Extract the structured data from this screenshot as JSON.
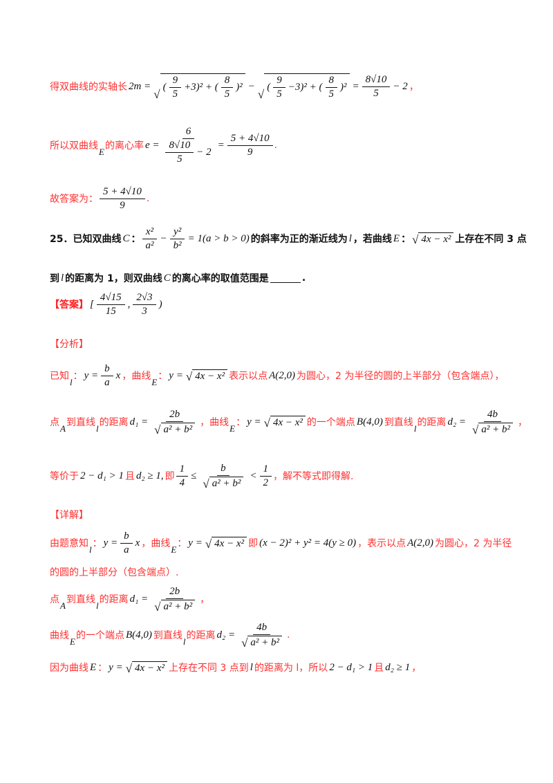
{
  "lines": [
    {
      "name": "real-axis-line",
      "segs": [
        {
          "k": "t",
          "v": "得双曲线的实轴长"
        },
        {
          "k": "m",
          "v": "2m ="
        },
        {
          "k": "sq",
          "c": [
            {
              "k": "m",
              "v": "("
            },
            {
              "k": "f",
              "n": [
                {
                  "k": "m",
                  "v": "9"
                }
              ],
              "d": [
                {
                  "k": "m",
                  "v": "5"
                }
              ]
            },
            {
              "k": "m",
              "v": "+3)² + ("
            },
            {
              "k": "f",
              "n": [
                {
                  "k": "m",
                  "v": "8"
                }
              ],
              "d": [
                {
                  "k": "m",
                  "v": "5"
                }
              ]
            },
            {
              "k": "m",
              "v": ")²"
            }
          ]
        },
        {
          "k": "m",
          "v": "−"
        },
        {
          "k": "sq",
          "c": [
            {
              "k": "m",
              "v": "("
            },
            {
              "k": "f",
              "n": [
                {
                  "k": "m",
                  "v": "9"
                }
              ],
              "d": [
                {
                  "k": "m",
                  "v": "5"
                }
              ]
            },
            {
              "k": "m",
              "v": "−3)² + ("
            },
            {
              "k": "f",
              "n": [
                {
                  "k": "m",
                  "v": "8"
                }
              ],
              "d": [
                {
                  "k": "m",
                  "v": "5"
                }
              ]
            },
            {
              "k": "m",
              "v": ")²"
            }
          ]
        },
        {
          "k": "m",
          "v": "="
        },
        {
          "k": "f",
          "n": [
            {
              "k": "m",
              "v": "8√10"
            }
          ],
          "d": [
            {
              "k": "m",
              "v": "5"
            }
          ]
        },
        {
          "k": "m",
          "v": "− 2"
        },
        {
          "k": "t",
          "v": "，"
        }
      ]
    },
    {
      "name": "eccentricity-line",
      "segs": [
        {
          "k": "t",
          "v": "所以双曲线"
        },
        {
          "k": "lo",
          "v": "E"
        },
        {
          "k": "t",
          "v": "的离心率"
        },
        {
          "k": "m",
          "v": "  e ="
        },
        {
          "k": "f",
          "n": [
            {
              "k": "m",
              "v": "6"
            }
          ],
          "d": [
            {
              "k": "f",
              "n": [
                {
                  "k": "m",
                  "v": "8√10"
                }
              ],
              "d": [
                {
                  "k": "m",
                  "v": "5"
                }
              ]
            },
            {
              "k": "m",
              "v": "− 2"
            }
          ]
        },
        {
          "k": "m",
          "v": "="
        },
        {
          "k": "f",
          "n": [
            {
              "k": "m",
              "v": "5 + 4√10"
            }
          ],
          "d": [
            {
              "k": "m",
              "v": "9"
            }
          ]
        },
        {
          "k": "t",
          "v": "  ."
        }
      ]
    },
    {
      "name": "answer-conclusion-line",
      "segs": [
        {
          "k": "t",
          "v": "故答案为："
        },
        {
          "k": "f",
          "n": [
            {
              "k": "m",
              "v": "5 + 4√10"
            }
          ],
          "d": [
            {
              "k": "m",
              "v": "9"
            }
          ]
        },
        {
          "k": "t",
          "v": "."
        }
      ]
    },
    {
      "name": "question-25-line-1",
      "segs": [
        {
          "k": "b",
          "v": "25．已知双曲线"
        },
        {
          "k": "m",
          "v": "C"
        },
        {
          "k": "b",
          "v": "："
        },
        {
          "k": "f",
          "n": [
            {
              "k": "m",
              "v": "x²"
            }
          ],
          "d": [
            {
              "k": "m",
              "v": "a²"
            }
          ]
        },
        {
          "k": "m",
          "v": "−"
        },
        {
          "k": "f",
          "n": [
            {
              "k": "m",
              "v": "y²"
            }
          ],
          "d": [
            {
              "k": "m",
              "v": "b²"
            }
          ]
        },
        {
          "k": "m",
          "v": "= 1(a > b > 0)"
        },
        {
          "k": "b",
          "v": "的斜率为正的渐近线为"
        },
        {
          "k": "m",
          "v": "l"
        },
        {
          "k": "b",
          "v": "，若曲线"
        },
        {
          "k": "m",
          "v": "E"
        },
        {
          "k": "b",
          "v": "："
        },
        {
          "k": "sq",
          "c": [
            {
              "k": "m",
              "v": "4x − x²"
            }
          ]
        },
        {
          "k": "b",
          "v": "上存在不同 3 点"
        }
      ]
    },
    {
      "name": "question-25-line-2",
      "segs": [
        {
          "k": "b",
          "v": "到"
        },
        {
          "k": "m",
          "v": "l"
        },
        {
          "k": "b",
          "v": "的距离为 1，则双曲线"
        },
        {
          "k": "m",
          "v": "C"
        },
        {
          "k": "b",
          "v": "的离心率的取值范围是"
        },
        {
          "k": "blank",
          "v": ""
        },
        {
          "k": "b",
          "v": "."
        }
      ]
    },
    {
      "name": "answer-line",
      "segs": [
        {
          "k": "tag",
          "v": "【答案】"
        },
        {
          "k": "m",
          "v": "["
        },
        {
          "k": "f",
          "n": [
            {
              "k": "m",
              "v": "4√15"
            }
          ],
          "d": [
            {
              "k": "m",
              "v": "15"
            }
          ]
        },
        {
          "k": "m",
          "v": ","
        },
        {
          "k": "f",
          "n": [
            {
              "k": "m",
              "v": "2√3"
            }
          ],
          "d": [
            {
              "k": "m",
              "v": "3"
            }
          ]
        },
        {
          "k": "m",
          "v": ")"
        }
      ]
    },
    {
      "name": "analysis-heading",
      "segs": [
        {
          "k": "tagn",
          "v": "【分析】"
        }
      ]
    },
    {
      "name": "analysis-line-1",
      "segs": [
        {
          "k": "t",
          "v": "已知"
        },
        {
          "k": "lo",
          "v": "l"
        },
        {
          "k": "t",
          "v": "："
        },
        {
          "k": "m",
          "v": "y ="
        },
        {
          "k": "f",
          "n": [
            {
              "k": "m",
              "v": "b"
            }
          ],
          "d": [
            {
              "k": "m",
              "v": "a"
            }
          ]
        },
        {
          "k": "m",
          "v": "x"
        },
        {
          "k": "t",
          "v": "，曲线"
        },
        {
          "k": "lo",
          "v": "E"
        },
        {
          "k": "t",
          "v": "："
        },
        {
          "k": "m",
          "v": "y ="
        },
        {
          "k": "sq",
          "c": [
            {
              "k": "m",
              "v": "4x − x²"
            }
          ]
        },
        {
          "k": "t",
          "v": "表示以点"
        },
        {
          "k": "m",
          "v": "A(2,0)"
        },
        {
          "k": "t",
          "v": "为圆心，2 为半径的圆的上半部分（包含端点），"
        }
      ]
    },
    {
      "name": "analysis-line-2",
      "segs": [
        {
          "k": "t",
          "v": "点"
        },
        {
          "k": "lo",
          "v": "A"
        },
        {
          "k": "t",
          "v": "到直线"
        },
        {
          "k": "lo",
          "v": "l"
        },
        {
          "k": "t",
          "v": "的距离"
        },
        {
          "k": "m",
          "v": "d₁ ="
        },
        {
          "k": "f",
          "n": [
            {
              "k": "m",
              "v": "2b"
            }
          ],
          "d": [
            {
              "k": "sq",
              "c": [
                {
                  "k": "m",
                  "v": "a² + b²"
                }
              ]
            }
          ]
        },
        {
          "k": "t",
          "v": "，曲线"
        },
        {
          "k": "lo",
          "v": "E"
        },
        {
          "k": "t",
          "v": "："
        },
        {
          "k": "m",
          "v": "y ="
        },
        {
          "k": "sq",
          "c": [
            {
              "k": "m",
              "v": "4x − x²"
            }
          ]
        },
        {
          "k": "t",
          "v": "的一个端点"
        },
        {
          "k": "m",
          "v": "B(4,0)"
        },
        {
          "k": "t",
          "v": "到直线"
        },
        {
          "k": "lo",
          "v": "l"
        },
        {
          "k": "t",
          "v": "的距离"
        },
        {
          "k": "m",
          "v": "d₂ ="
        },
        {
          "k": "f",
          "n": [
            {
              "k": "m",
              "v": "4b"
            }
          ],
          "d": [
            {
              "k": "sq",
              "c": [
                {
                  "k": "m",
                  "v": "a² + b²"
                }
              ]
            }
          ]
        },
        {
          "k": "t",
          "v": "，"
        }
      ]
    },
    {
      "name": "analysis-line-3",
      "segs": [
        {
          "k": "t",
          "v": "等价于"
        },
        {
          "k": "m",
          "v": "2 − d₁ > 1"
        },
        {
          "k": "t",
          "v": "且"
        },
        {
          "k": "m",
          "v": "d₂ ≥ 1,"
        },
        {
          "k": "t",
          "v": "即"
        },
        {
          "k": "f",
          "n": [
            {
              "k": "m",
              "v": "1"
            }
          ],
          "d": [
            {
              "k": "m",
              "v": "4"
            }
          ]
        },
        {
          "k": "m",
          "v": "≤"
        },
        {
          "k": "f",
          "n": [
            {
              "k": "m",
              "v": "b"
            }
          ],
          "d": [
            {
              "k": "sq",
              "c": [
                {
                  "k": "m",
                  "v": "a² + b²"
                }
              ]
            }
          ]
        },
        {
          "k": "m",
          "v": "<"
        },
        {
          "k": "f",
          "n": [
            {
              "k": "m",
              "v": "1"
            }
          ],
          "d": [
            {
              "k": "m",
              "v": "2"
            }
          ]
        },
        {
          "k": "t",
          "v": "，解不等式即得解."
        }
      ]
    },
    {
      "name": "detail-heading",
      "segs": [
        {
          "k": "tagn",
          "v": "【详解】"
        }
      ]
    },
    {
      "name": "detail-line-1",
      "segs": [
        {
          "k": "t",
          "v": "由题意知"
        },
        {
          "k": "lo",
          "v": "l"
        },
        {
          "k": "t",
          "v": "："
        },
        {
          "k": "m",
          "v": "y ="
        },
        {
          "k": "f",
          "n": [
            {
              "k": "m",
              "v": "b"
            }
          ],
          "d": [
            {
              "k": "m",
              "v": "a"
            }
          ]
        },
        {
          "k": "m",
          "v": "x"
        },
        {
          "k": "t",
          "v": "，曲线"
        },
        {
          "k": "lo",
          "v": "E"
        },
        {
          "k": "t",
          "v": "："
        },
        {
          "k": "m",
          "v": "y ="
        },
        {
          "k": "sq",
          "c": [
            {
              "k": "m",
              "v": "4x − x²"
            }
          ]
        },
        {
          "k": "t",
          "v": "即"
        },
        {
          "k": "m",
          "v": "(x − 2)² + y² = 4(y ≥ 0)"
        },
        {
          "k": "t",
          "v": "，表示以点"
        },
        {
          "k": "m",
          "v": "A(2,0)"
        },
        {
          "k": "t",
          "v": "为圆心，2 为半径"
        }
      ]
    },
    {
      "name": "detail-line-2",
      "segs": [
        {
          "k": "t",
          "v": "的圆的上半部分（包含端点）."
        }
      ]
    },
    {
      "name": "detail-line-3",
      "segs": [
        {
          "k": "t",
          "v": "点"
        },
        {
          "k": "lo",
          "v": "A"
        },
        {
          "k": "t",
          "v": "到直线"
        },
        {
          "k": "lo",
          "v": "l"
        },
        {
          "k": "t",
          "v": "的距离"
        },
        {
          "k": "m",
          "v": "d₁ ="
        },
        {
          "k": "f",
          "n": [
            {
              "k": "m",
              "v": "2b"
            }
          ],
          "d": [
            {
              "k": "sq",
              "c": [
                {
                  "k": "m",
                  "v": "a² + b²"
                }
              ]
            }
          ]
        },
        {
          "k": "t",
          "v": "，"
        }
      ]
    },
    {
      "name": "detail-line-4",
      "segs": [
        {
          "k": "t",
          "v": "曲线"
        },
        {
          "k": "lo",
          "v": "E"
        },
        {
          "k": "t",
          "v": "的一个端点"
        },
        {
          "k": "m",
          "v": "B(4,0)"
        },
        {
          "k": "t",
          "v": "到直线"
        },
        {
          "k": "lo",
          "v": "l"
        },
        {
          "k": "t",
          "v": "的距离"
        },
        {
          "k": "m",
          "v": "d₂ ="
        },
        {
          "k": "f",
          "n": [
            {
              "k": "m",
              "v": "4b"
            }
          ],
          "d": [
            {
              "k": "sq",
              "c": [
                {
                  "k": "m",
                  "v": "a² + b²"
                }
              ]
            }
          ]
        },
        {
          "k": "t",
          "v": "."
        }
      ]
    },
    {
      "name": "detail-line-5",
      "segs": [
        {
          "k": "t",
          "v": "因为曲线"
        },
        {
          "k": "m",
          "v": "E"
        },
        {
          "k": "t",
          "v": "："
        },
        {
          "k": "m",
          "v": "y ="
        },
        {
          "k": "sq",
          "c": [
            {
              "k": "m",
              "v": "4x − x²"
            }
          ]
        },
        {
          "k": "t",
          "v": "上存在不同 3 点到"
        },
        {
          "k": "m",
          "v": "l"
        },
        {
          "k": "t",
          "v": "的距离为 l，所以"
        },
        {
          "k": "m",
          "v": "2 − d₁ > 1"
        },
        {
          "k": "t",
          "v": "且"
        },
        {
          "k": "m",
          "v": "d₂ ≥ 1"
        },
        {
          "k": "t",
          "v": "，"
        }
      ]
    }
  ]
}
